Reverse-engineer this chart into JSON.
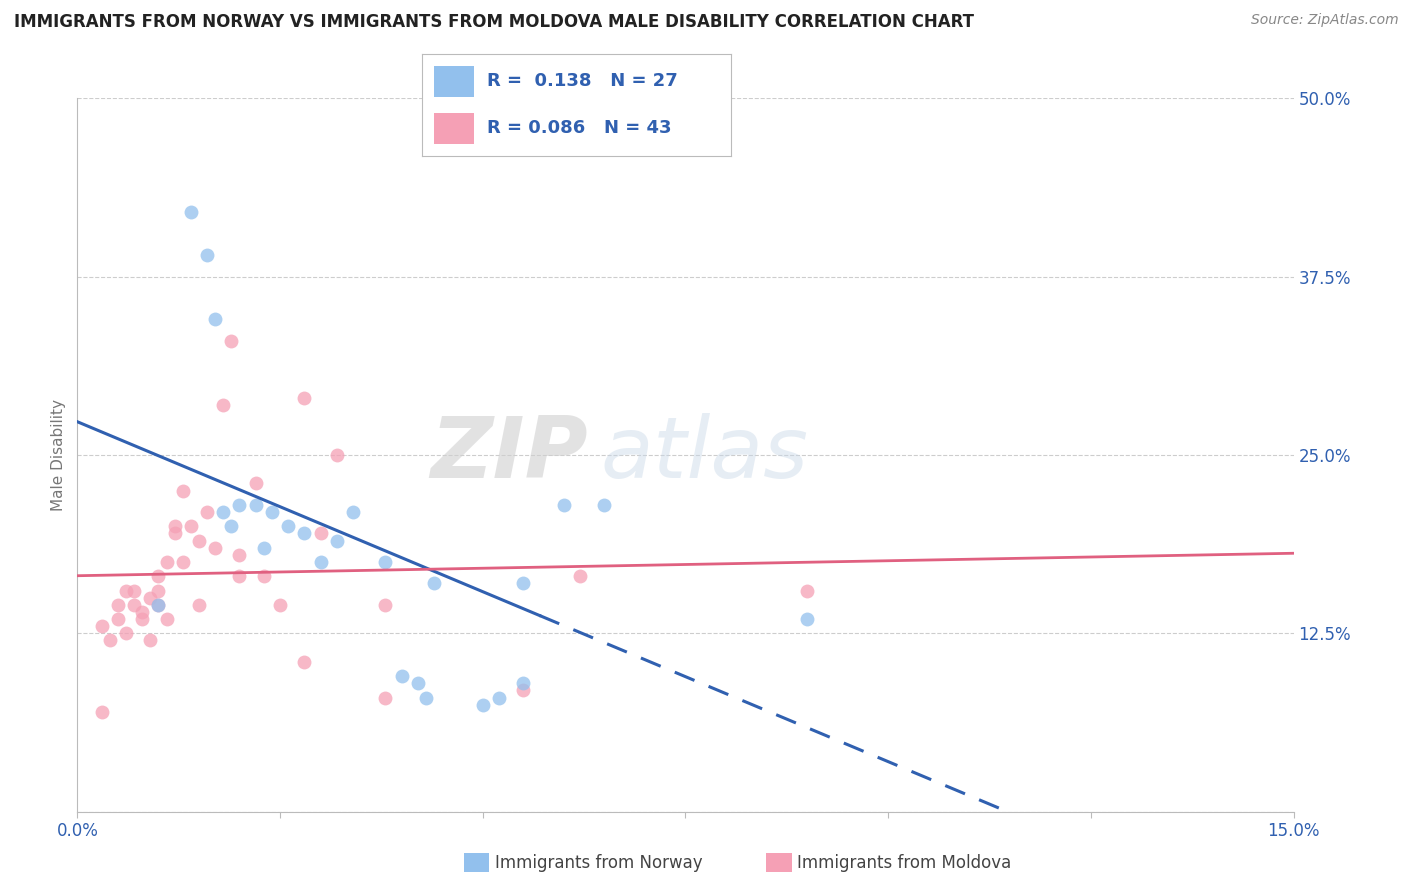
{
  "title": "IMMIGRANTS FROM NORWAY VS IMMIGRANTS FROM MOLDOVA MALE DISABILITY CORRELATION CHART",
  "source": "Source: ZipAtlas.com",
  "ylabel_label": "Male Disability",
  "xlim": [
    0.0,
    0.15
  ],
  "ylim": [
    0.0,
    0.5
  ],
  "xticks": [
    0.0,
    0.025,
    0.05,
    0.075,
    0.1,
    0.125,
    0.15
  ],
  "yticks": [
    0.0,
    0.125,
    0.25,
    0.375,
    0.5
  ],
  "ytick_labels": [
    "",
    "12.5%",
    "25.0%",
    "37.5%",
    "50.0%"
  ],
  "xtick_labels": [
    "0.0%",
    "",
    "",
    "",
    "",
    "",
    "15.0%"
  ],
  "norway_R": "0.138",
  "norway_N": "27",
  "moldova_R": "0.086",
  "moldova_N": "43",
  "norway_color": "#92c0ed",
  "moldova_color": "#f5a0b5",
  "norway_line_color": "#3060b0",
  "moldova_line_color": "#e06080",
  "norway_scatter_x": [
    0.01,
    0.014,
    0.016,
    0.017,
    0.018,
    0.019,
    0.02,
    0.022,
    0.023,
    0.024,
    0.026,
    0.028,
    0.03,
    0.032,
    0.034,
    0.038,
    0.04,
    0.042,
    0.043,
    0.044,
    0.05,
    0.052,
    0.06,
    0.065,
    0.055,
    0.09,
    0.055
  ],
  "norway_scatter_y": [
    0.145,
    0.42,
    0.39,
    0.345,
    0.21,
    0.2,
    0.215,
    0.215,
    0.185,
    0.21,
    0.2,
    0.195,
    0.175,
    0.19,
    0.21,
    0.175,
    0.095,
    0.09,
    0.08,
    0.16,
    0.075,
    0.08,
    0.215,
    0.215,
    0.16,
    0.135,
    0.09
  ],
  "moldova_scatter_x": [
    0.003,
    0.004,
    0.005,
    0.005,
    0.006,
    0.006,
    0.007,
    0.007,
    0.008,
    0.008,
    0.009,
    0.009,
    0.01,
    0.01,
    0.01,
    0.011,
    0.011,
    0.012,
    0.012,
    0.013,
    0.013,
    0.014,
    0.015,
    0.015,
    0.016,
    0.017,
    0.018,
    0.019,
    0.02,
    0.02,
    0.022,
    0.023,
    0.025,
    0.028,
    0.03,
    0.032,
    0.028,
    0.038,
    0.038,
    0.055,
    0.062,
    0.09,
    0.003
  ],
  "moldova_scatter_y": [
    0.13,
    0.12,
    0.135,
    0.145,
    0.125,
    0.155,
    0.145,
    0.155,
    0.14,
    0.135,
    0.12,
    0.15,
    0.145,
    0.155,
    0.165,
    0.135,
    0.175,
    0.2,
    0.195,
    0.175,
    0.225,
    0.2,
    0.19,
    0.145,
    0.21,
    0.185,
    0.285,
    0.33,
    0.165,
    0.18,
    0.23,
    0.165,
    0.145,
    0.105,
    0.195,
    0.25,
    0.29,
    0.145,
    0.08,
    0.085,
    0.165,
    0.155,
    0.07
  ],
  "watermark_zip": "ZIP",
  "watermark_atlas": "atlas",
  "background_color": "#ffffff",
  "grid_color": "#c8c8c8",
  "legend_text_color": "#3060b0"
}
